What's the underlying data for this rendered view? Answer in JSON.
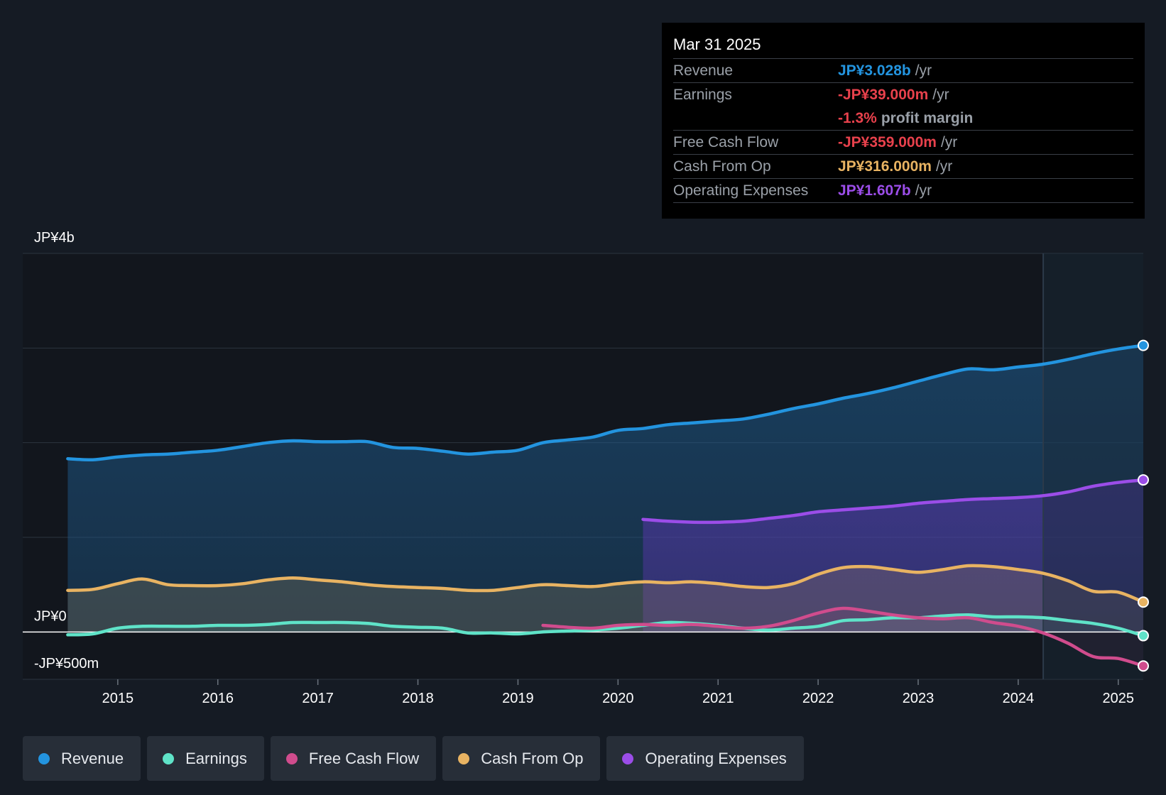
{
  "tooltip": {
    "date": "Mar 31 2025",
    "revenue": {
      "label": "Revenue",
      "value": "JP¥3.028b",
      "unit": "/yr"
    },
    "earnings": {
      "label": "Earnings",
      "value": "-JP¥39.000m",
      "unit": "/yr"
    },
    "margin": {
      "value": "-1.3%",
      "unit": "profit margin"
    },
    "fcf": {
      "label": "Free Cash Flow",
      "value": "-JP¥359.000m",
      "unit": "/yr"
    },
    "cfo": {
      "label": "Cash From Op",
      "value": "JP¥316.000m",
      "unit": "/yr"
    },
    "opex": {
      "label": "Operating Expenses",
      "value": "JP¥1.607b",
      "unit": "/yr"
    }
  },
  "legend": {
    "revenue": "Revenue",
    "earnings": "Earnings",
    "fcf": "Free Cash Flow",
    "cfo": "Cash From Op",
    "opex": "Operating Expenses"
  },
  "colors": {
    "revenue": "#2394df",
    "earnings": "#5fe3c8",
    "fcf": "#d04c8d",
    "cfo": "#e8b362",
    "opex": "#9b4de8",
    "negative": "#e8414c"
  },
  "chart_data": {
    "type": "area",
    "ylim": [
      -500,
      4000
    ],
    "y_axis_labels": [
      {
        "text": "JP¥4b",
        "value": 4000
      },
      {
        "text": "JP¥0",
        "value": 0
      },
      {
        "text": "-JP¥500m",
        "value": -500
      }
    ],
    "xlim": [
      2014.05,
      2025.25
    ],
    "x_ticks": [
      2015,
      2016,
      2017,
      2018,
      2019,
      2020,
      2021,
      2022,
      2023,
      2024,
      2025
    ],
    "x_tick_labels": [
      "2015",
      "2016",
      "2017",
      "2018",
      "2019",
      "2020",
      "2021",
      "2022",
      "2023",
      "2024",
      "2025"
    ],
    "forecast_start": 2024.25,
    "series": [
      {
        "key": "revenue",
        "name": "Revenue",
        "points": [
          [
            2014.5,
            1830
          ],
          [
            2014.75,
            1820
          ],
          [
            2015,
            1850
          ],
          [
            2015.25,
            1870
          ],
          [
            2015.5,
            1880
          ],
          [
            2015.75,
            1900
          ],
          [
            2016,
            1920
          ],
          [
            2016.25,
            1960
          ],
          [
            2016.5,
            2000
          ],
          [
            2016.75,
            2020
          ],
          [
            2017,
            2010
          ],
          [
            2017.25,
            2010
          ],
          [
            2017.5,
            2010
          ],
          [
            2017.75,
            1950
          ],
          [
            2018,
            1940
          ],
          [
            2018.25,
            1910
          ],
          [
            2018.5,
            1880
          ],
          [
            2018.75,
            1900
          ],
          [
            2019,
            1920
          ],
          [
            2019.25,
            2000
          ],
          [
            2019.5,
            2030
          ],
          [
            2019.75,
            2060
          ],
          [
            2020,
            2130
          ],
          [
            2020.25,
            2150
          ],
          [
            2020.5,
            2190
          ],
          [
            2020.75,
            2210
          ],
          [
            2021,
            2230
          ],
          [
            2021.25,
            2250
          ],
          [
            2021.5,
            2300
          ],
          [
            2021.75,
            2360
          ],
          [
            2022,
            2410
          ],
          [
            2022.25,
            2470
          ],
          [
            2022.5,
            2520
          ],
          [
            2022.75,
            2580
          ],
          [
            2023,
            2650
          ],
          [
            2023.25,
            2720
          ],
          [
            2023.5,
            2780
          ],
          [
            2023.75,
            2770
          ],
          [
            2024,
            2800
          ],
          [
            2024.25,
            2830
          ],
          [
            2024.5,
            2880
          ],
          [
            2024.75,
            2940
          ],
          [
            2025,
            2990
          ],
          [
            2025.25,
            3028
          ]
        ]
      },
      {
        "key": "opex",
        "name": "Operating Expenses",
        "points": [
          [
            2020.25,
            1190
          ],
          [
            2020.5,
            1170
          ],
          [
            2020.75,
            1160
          ],
          [
            2021,
            1160
          ],
          [
            2021.25,
            1170
          ],
          [
            2021.5,
            1200
          ],
          [
            2021.75,
            1230
          ],
          [
            2022,
            1270
          ],
          [
            2022.25,
            1290
          ],
          [
            2022.5,
            1310
          ],
          [
            2022.75,
            1330
          ],
          [
            2023,
            1360
          ],
          [
            2023.25,
            1380
          ],
          [
            2023.5,
            1400
          ],
          [
            2023.75,
            1410
          ],
          [
            2024,
            1420
          ],
          [
            2024.25,
            1440
          ],
          [
            2024.5,
            1480
          ],
          [
            2024.75,
            1540
          ],
          [
            2025,
            1580
          ],
          [
            2025.25,
            1607
          ]
        ]
      },
      {
        "key": "cfo",
        "name": "Cash From Op",
        "points": [
          [
            2014.5,
            440
          ],
          [
            2014.75,
            450
          ],
          [
            2015,
            510
          ],
          [
            2015.25,
            560
          ],
          [
            2015.5,
            500
          ],
          [
            2015.75,
            490
          ],
          [
            2016,
            490
          ],
          [
            2016.25,
            510
          ],
          [
            2016.5,
            550
          ],
          [
            2016.75,
            570
          ],
          [
            2017,
            550
          ],
          [
            2017.25,
            530
          ],
          [
            2017.5,
            500
          ],
          [
            2017.75,
            480
          ],
          [
            2018,
            470
          ],
          [
            2018.25,
            460
          ],
          [
            2018.5,
            440
          ],
          [
            2018.75,
            440
          ],
          [
            2019,
            470
          ],
          [
            2019.25,
            500
          ],
          [
            2019.5,
            490
          ],
          [
            2019.75,
            480
          ],
          [
            2020,
            510
          ],
          [
            2020.25,
            530
          ],
          [
            2020.5,
            520
          ],
          [
            2020.75,
            530
          ],
          [
            2021,
            510
          ],
          [
            2021.25,
            480
          ],
          [
            2021.5,
            470
          ],
          [
            2021.75,
            510
          ],
          [
            2022,
            610
          ],
          [
            2022.25,
            680
          ],
          [
            2022.5,
            690
          ],
          [
            2022.75,
            660
          ],
          [
            2023,
            630
          ],
          [
            2023.25,
            660
          ],
          [
            2023.5,
            700
          ],
          [
            2023.75,
            690
          ],
          [
            2024,
            660
          ],
          [
            2024.25,
            620
          ],
          [
            2024.5,
            540
          ],
          [
            2024.75,
            430
          ],
          [
            2025,
            420
          ],
          [
            2025.25,
            316
          ]
        ]
      },
      {
        "key": "earnings",
        "name": "Earnings",
        "points": [
          [
            2014.5,
            -30
          ],
          [
            2014.75,
            -20
          ],
          [
            2015,
            40
          ],
          [
            2015.25,
            60
          ],
          [
            2015.5,
            60
          ],
          [
            2015.75,
            60
          ],
          [
            2016,
            70
          ],
          [
            2016.25,
            70
          ],
          [
            2016.5,
            80
          ],
          [
            2016.75,
            100
          ],
          [
            2017,
            100
          ],
          [
            2017.25,
            100
          ],
          [
            2017.5,
            90
          ],
          [
            2017.75,
            60
          ],
          [
            2018,
            50
          ],
          [
            2018.25,
            40
          ],
          [
            2018.5,
            -10
          ],
          [
            2018.75,
            -10
          ],
          [
            2019,
            -20
          ],
          [
            2019.25,
            0
          ],
          [
            2019.5,
            10
          ],
          [
            2019.75,
            20
          ],
          [
            2020,
            40
          ],
          [
            2020.25,
            70
          ],
          [
            2020.5,
            100
          ],
          [
            2020.75,
            90
          ],
          [
            2021,
            70
          ],
          [
            2021.25,
            40
          ],
          [
            2021.5,
            20
          ],
          [
            2021.75,
            40
          ],
          [
            2022,
            60
          ],
          [
            2022.25,
            120
          ],
          [
            2022.5,
            130
          ],
          [
            2022.75,
            150
          ],
          [
            2023,
            150
          ],
          [
            2023.25,
            170
          ],
          [
            2023.5,
            180
          ],
          [
            2023.75,
            160
          ],
          [
            2024,
            160
          ],
          [
            2024.25,
            150
          ],
          [
            2024.5,
            120
          ],
          [
            2024.75,
            90
          ],
          [
            2025,
            40
          ],
          [
            2025.25,
            -39
          ]
        ]
      },
      {
        "key": "fcf",
        "name": "Free Cash Flow",
        "points": [
          [
            2019.25,
            70
          ],
          [
            2019.5,
            50
          ],
          [
            2019.75,
            40
          ],
          [
            2020,
            70
          ],
          [
            2020.25,
            80
          ],
          [
            2020.5,
            70
          ],
          [
            2020.75,
            80
          ],
          [
            2021,
            60
          ],
          [
            2021.25,
            40
          ],
          [
            2021.5,
            60
          ],
          [
            2021.75,
            120
          ],
          [
            2022,
            200
          ],
          [
            2022.25,
            250
          ],
          [
            2022.5,
            220
          ],
          [
            2022.75,
            180
          ],
          [
            2023,
            150
          ],
          [
            2023.25,
            140
          ],
          [
            2023.5,
            150
          ],
          [
            2023.75,
            100
          ],
          [
            2024,
            60
          ],
          [
            2024.25,
            -10
          ],
          [
            2024.5,
            -120
          ],
          [
            2024.75,
            -260
          ],
          [
            2025,
            -280
          ],
          [
            2025.25,
            -359
          ]
        ]
      }
    ]
  }
}
